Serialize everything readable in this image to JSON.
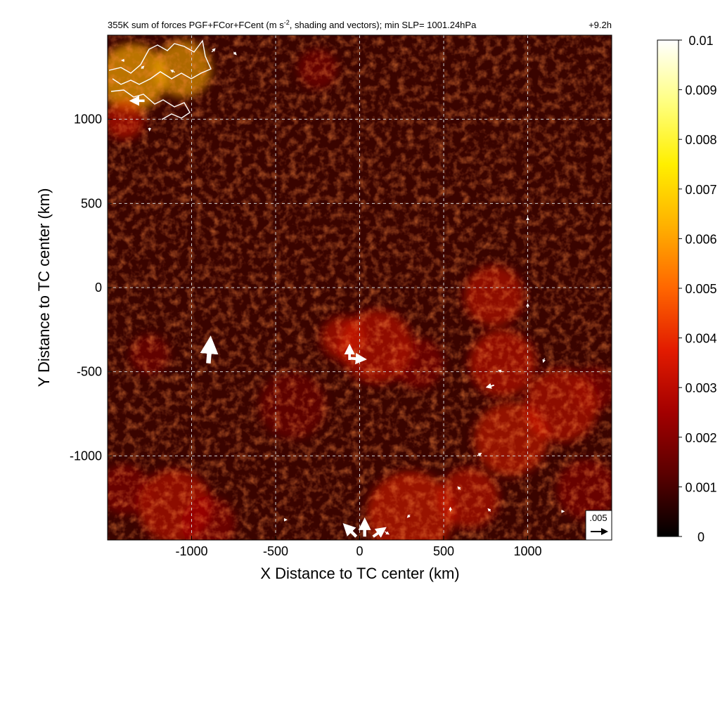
{
  "chart_data": {
    "type": "heatmap",
    "title": "355K sum of forces PGF+FCor+FCent (m s",
    "title_superscript": "-2",
    "title_rest": ", shading and vectors); min SLP= 1001.24hPa",
    "time_label": "+9.2h",
    "xlabel": "X Distance to TC center (km)",
    "ylabel": "Y Distance to TC center (km)",
    "xlim": [
      -1500,
      1500
    ],
    "ylim": [
      -1500,
      1500
    ],
    "x_ticks": [
      -1000,
      -500,
      0,
      500,
      1000
    ],
    "x_tick_labels": [
      "-1000",
      "-500",
      "0",
      "500",
      "1000"
    ],
    "y_ticks": [
      -1000,
      -500,
      0,
      500,
      1000
    ],
    "y_tick_labels": [
      "-1000",
      "-500",
      "0",
      "500",
      "1000"
    ],
    "grid": "dashed",
    "colorbar": {
      "min": 0,
      "max": 0.01,
      "ticks": [
        0,
        0.001,
        0.002,
        0.003,
        0.004,
        0.005,
        0.006,
        0.007,
        0.008,
        0.009,
        0.01
      ],
      "tick_labels": [
        "0",
        "0.001",
        "0.002",
        "0.003",
        "0.004",
        "0.005",
        "0.006",
        "0.007",
        "0.008",
        "0.009",
        "0.01"
      ],
      "colors": [
        "#000000",
        "#5a0000",
        "#a30000",
        "#e21b00",
        "#ff6600",
        "#ffb000",
        "#ffef00",
        "#ffff80",
        "#ffffff"
      ]
    },
    "reference_vector": {
      "label": ".005",
      "value": 0.005
    },
    "vector_color": "#ffffff",
    "coastline_color": "#ffffff",
    "background_shading_color": "#3a0400",
    "hotspots": [
      {
        "x": -1350,
        "y": 1250,
        "r": 200,
        "i": 0.9
      },
      {
        "x": -1050,
        "y": 1300,
        "r": 170,
        "i": 0.75
      },
      {
        "x": -1400,
        "y": 1000,
        "r": 120,
        "i": 0.6
      },
      {
        "x": -250,
        "y": 1300,
        "r": 120,
        "i": 0.35
      },
      {
        "x": 100,
        "y": -350,
        "r": 220,
        "i": 0.6
      },
      {
        "x": -100,
        "y": -300,
        "r": 130,
        "i": 0.55
      },
      {
        "x": 350,
        "y": -450,
        "r": 150,
        "i": 0.45
      },
      {
        "x": 800,
        "y": -50,
        "r": 180,
        "i": 0.55
      },
      {
        "x": 850,
        "y": -450,
        "r": 200,
        "i": 0.6
      },
      {
        "x": 900,
        "y": -900,
        "r": 220,
        "i": 0.65
      },
      {
        "x": 1200,
        "y": -700,
        "r": 220,
        "i": 0.55
      },
      {
        "x": 1400,
        "y": -600,
        "r": 130,
        "i": 0.45
      },
      {
        "x": 300,
        "y": -1350,
        "r": 260,
        "i": 0.7
      },
      {
        "x": 650,
        "y": -1250,
        "r": 180,
        "i": 0.55
      },
      {
        "x": -1100,
        "y": -1300,
        "r": 220,
        "i": 0.55
      },
      {
        "x": -900,
        "y": -1400,
        "r": 160,
        "i": 0.5
      },
      {
        "x": -1400,
        "y": -1200,
        "r": 150,
        "i": 0.45
      },
      {
        "x": -1250,
        "y": -400,
        "r": 120,
        "i": 0.3
      },
      {
        "x": 1350,
        "y": -1200,
        "r": 180,
        "i": 0.45
      },
      {
        "x": -400,
        "y": -700,
        "r": 200,
        "i": 0.2
      }
    ],
    "vectors": [
      {
        "x": -900,
        "y": -450,
        "u": 0.0006,
        "v": 0.0072
      },
      {
        "x": -60,
        "y": -430,
        "u": 0.0,
        "v": 0.0042
      },
      {
        "x": -60,
        "y": -420,
        "u": 0.0045,
        "v": -0.0003
      },
      {
        "x": 30,
        "y": -1480,
        "u": 0.0,
        "v": 0.005
      },
      {
        "x": -20,
        "y": -1480,
        "u": -0.0035,
        "v": 0.0035
      },
      {
        "x": 80,
        "y": -1480,
        "u": 0.0035,
        "v": 0.0025
      },
      {
        "x": -1280,
        "y": 1110,
        "u": -0.004,
        "v": 0.0
      },
      {
        "x": -880,
        "y": 1400,
        "u": 0.001,
        "v": 0.001
      },
      {
        "x": -750,
        "y": 1400,
        "u": 0.0008,
        "v": -0.0008
      },
      {
        "x": -1100,
        "y": 1280,
        "u": -0.0012,
        "v": 0.0006
      },
      {
        "x": -1250,
        "y": 950,
        "u": 0.0,
        "v": -0.0009
      },
      {
        "x": -1300,
        "y": 1300,
        "u": 0.0008,
        "v": 0.0008
      },
      {
        "x": -1400,
        "y": 1350,
        "u": -0.0008,
        "v": 0.0
      },
      {
        "x": 850,
        "y": -500,
        "u": -0.0012,
        "v": 0.0004
      },
      {
        "x": 800,
        "y": -580,
        "u": -0.0022,
        "v": -0.0006
      },
      {
        "x": 1100,
        "y": -420,
        "u": -0.0004,
        "v": -0.0012
      },
      {
        "x": 1000,
        "y": -120,
        "u": 0.0,
        "v": 0.0012
      },
      {
        "x": 1000,
        "y": 400,
        "u": 0.0,
        "v": 0.0008
      },
      {
        "x": 780,
        "y": -1330,
        "u": -0.0008,
        "v": 0.0008
      },
      {
        "x": 540,
        "y": -1330,
        "u": 0.0,
        "v": 0.0012
      },
      {
        "x": 300,
        "y": -1350,
        "u": -0.0008,
        "v": -0.0008
      },
      {
        "x": 150,
        "y": -1450,
        "u": 0.0012,
        "v": -0.0008
      },
      {
        "x": 700,
        "y": -1000,
        "u": 0.0012,
        "v": 0.0008
      },
      {
        "x": 600,
        "y": -1200,
        "u": -0.0008,
        "v": 0.0008
      },
      {
        "x": 1200,
        "y": -1330,
        "u": 0.0008,
        "v": 0.0
      },
      {
        "x": -450,
        "y": -1380,
        "u": 0.0008,
        "v": 0.0
      }
    ]
  }
}
